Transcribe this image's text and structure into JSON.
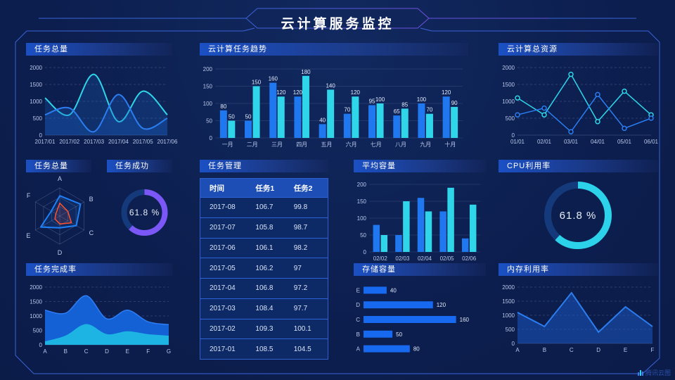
{
  "header": {
    "title": "云计算服务监控"
  },
  "watermark": {
    "label": "腾讯云图"
  },
  "colors": {
    "background": "#0c1e4e",
    "accent_blue": "#1f78f0",
    "accent_cyan": "#2fd5e8",
    "accent_purple": "#7b57f7",
    "accent_orange": "#ff5230",
    "frame_line": "#3b63d8",
    "panel_title_bar": "#1b50c4",
    "table_header": "#1d4eb5",
    "donut_track": "#143a7c"
  },
  "panels": {
    "taskTotalLine": {
      "title": "任务总量"
    },
    "taskTrend": {
      "title": "云计算任务趋势"
    },
    "cloudResource": {
      "title": "云计算总资源"
    },
    "taskRadar": {
      "title": "任务总量"
    },
    "taskSuccess": {
      "title": "任务成功"
    },
    "taskManage": {
      "title": "任务管理"
    },
    "avgCapacity": {
      "title": "平均容量"
    },
    "cpuUsage": {
      "title": "CPU利用率"
    },
    "taskComplete": {
      "title": "任务完成率"
    },
    "storage": {
      "title": "存储容量"
    },
    "memoryUsage": {
      "title": "内存利用率"
    }
  },
  "chart_data": [
    {
      "id": "task-total-area",
      "type": "line",
      "title": "任务总量",
      "smooth": true,
      "grid_dashed": true,
      "x": [
        "2017/01",
        "2017/02",
        "2017/03",
        "2017/04",
        "2017/05",
        "2017/06"
      ],
      "ylim": [
        0,
        2000
      ],
      "yticks": [
        0,
        500,
        1000,
        1500,
        2000
      ],
      "pad": {
        "l": 28,
        "r": 8,
        "t": 12,
        "b": 16
      },
      "series": [
        {
          "name": "cyan-series",
          "color": "#2fd5e8",
          "width": 2,
          "fill": "#1a6fd0",
          "fillOpacity": 0.22,
          "values": [
            1100,
            600,
            1800,
            400,
            1300,
            600
          ]
        },
        {
          "name": "blue-series",
          "color": "#2b7df0",
          "width": 2,
          "fill": "#1a5fc8",
          "fillOpacity": 0.3,
          "values": [
            600,
            800,
            100,
            1200,
            200,
            500
          ]
        }
      ]
    },
    {
      "id": "task-trend-bar",
      "type": "bar",
      "title": "云计算任务趋势",
      "categories": [
        "一月",
        "二月",
        "三月",
        "四月",
        "五月",
        "六月",
        "七月",
        "八月",
        "九月",
        "十月"
      ],
      "ylim": [
        0,
        200
      ],
      "yticks": [
        0,
        50,
        100,
        150,
        200
      ],
      "value_labels": true,
      "pad": {
        "l": 24,
        "r": 8,
        "t": 14,
        "b": 16
      },
      "series": [
        {
          "name": "任务1",
          "color": "#1f78f0",
          "values": [
            80,
            50,
            160,
            120,
            40,
            70,
            95,
            65,
            100,
            120
          ]
        },
        {
          "name": "任务2",
          "color": "#2fd5e8",
          "values": [
            50,
            150,
            120,
            180,
            140,
            120,
            100,
            85,
            70,
            90
          ]
        }
      ]
    },
    {
      "id": "cloud-resource-line",
      "type": "line",
      "title": "云计算总资源",
      "smooth": false,
      "grid_dashed": true,
      "x": [
        "01/01",
        "02/01",
        "03/01",
        "04/01",
        "05/01",
        "06/01"
      ],
      "ylim": [
        0,
        2000
      ],
      "yticks": [
        0,
        500,
        1000,
        1500,
        2000
      ],
      "pad": {
        "l": 30,
        "r": 10,
        "t": 12,
        "b": 16
      },
      "series": [
        {
          "name": "cyan-series",
          "color": "#2fd5e8",
          "width": 1.5,
          "marker": true,
          "values": [
            1100,
            600,
            1800,
            400,
            1300,
            600
          ]
        },
        {
          "name": "blue-series",
          "color": "#2b7df0",
          "width": 1.5,
          "marker": true,
          "values": [
            600,
            800,
            100,
            1200,
            200,
            500
          ]
        }
      ]
    },
    {
      "id": "task-radar",
      "type": "radar",
      "title": "任务总量",
      "axes": [
        "A",
        "B",
        "C",
        "D",
        "E",
        "F"
      ],
      "max": 100,
      "levels": 3,
      "series": [
        {
          "name": "blue-polygon",
          "color": "#2080f8",
          "values": [
            72,
            85,
            68,
            42,
            78,
            35
          ]
        },
        {
          "name": "orange-polygon",
          "color": "#ff5230",
          "values": [
            46,
            33,
            48,
            28,
            20,
            16
          ]
        }
      ]
    },
    {
      "id": "task-success-donut",
      "type": "donut",
      "title": "任务成功",
      "value": 61.8,
      "label": "61.8 %",
      "color": "#7b57f7",
      "track": "#143a7c",
      "r": 29,
      "sw": 8,
      "fs": 12
    },
    {
      "id": "task-table",
      "type": "table",
      "title": "任务管理",
      "headers": [
        "时间",
        "任务1",
        "任务2"
      ],
      "rows": [
        [
          "2017-08",
          "106.7",
          "99.8"
        ],
        [
          "2017-07",
          "105.8",
          "98.7"
        ],
        [
          "2017-06",
          "106.1",
          "98.2"
        ],
        [
          "2017-05",
          "106.2",
          "97"
        ],
        [
          "2017-04",
          "106.8",
          "97.2"
        ],
        [
          "2017-03",
          "108.4",
          "97.7"
        ],
        [
          "2017-02",
          "109.3",
          "100.1"
        ],
        [
          "2017-01",
          "108.5",
          "104.5"
        ]
      ]
    },
    {
      "id": "avg-capacity-bar",
      "type": "bar",
      "title": "平均容量",
      "categories": [
        "02/02",
        "02/03",
        "02/04",
        "02/05",
        "02/06"
      ],
      "ylim": [
        0,
        200
      ],
      "yticks": [
        0,
        50,
        100,
        150,
        200
      ],
      "value_labels": false,
      "pad": {
        "l": 24,
        "r": 8,
        "t": 10,
        "b": 16
      },
      "series": [
        {
          "name": "blue-series",
          "color": "#1f78f0",
          "values": [
            80,
            50,
            160,
            120,
            40
          ]
        },
        {
          "name": "cyan-series",
          "color": "#2fd5e8",
          "values": [
            50,
            150,
            120,
            190,
            140
          ]
        }
      ]
    },
    {
      "id": "cpu-donut",
      "type": "donut",
      "title": "CPU利用率",
      "value": 61.8,
      "label": "61.8 %",
      "color": "#2bd2ea",
      "track": "#143a7c",
      "r": 43,
      "sw": 10,
      "fs": 15
    },
    {
      "id": "task-complete-area",
      "type": "line",
      "title": "任务完成率",
      "smooth": true,
      "grid_dashed": true,
      "x": [
        "A",
        "B",
        "C",
        "D",
        "E",
        "F",
        "G"
      ],
      "ylim": [
        0,
        2000
      ],
      "yticks": [
        0,
        500,
        1000,
        1500,
        2000
      ],
      "pad": {
        "l": 28,
        "r": 6,
        "t": 12,
        "b": 16
      },
      "series": [
        {
          "name": "blue-area",
          "color": "#2f7df5",
          "width": 1.5,
          "fill": "#1565dc",
          "fillOpacity": 0.95,
          "values": [
            1200,
            1100,
            1700,
            900,
            1200,
            800,
            700
          ]
        },
        {
          "name": "cyan-area",
          "color": "#1db4e4",
          "width": 1.5,
          "fill": "#1db4e4",
          "fillOpacity": 1,
          "values": [
            100,
            300,
            700,
            350,
            450,
            350,
            300
          ]
        }
      ]
    },
    {
      "id": "storage-hbar",
      "type": "hbar",
      "title": "存储容量",
      "categories": [
        "E",
        "D",
        "C",
        "B",
        "A"
      ],
      "values": [
        40,
        120,
        160,
        50,
        80
      ],
      "xlim": [
        0,
        175
      ],
      "color": "#1769ef"
    },
    {
      "id": "memory-line",
      "type": "line",
      "title": "内存利用率",
      "smooth": false,
      "grid_dashed": true,
      "x": [
        "A",
        "B",
        "C",
        "D",
        "E",
        "F"
      ],
      "ylim": [
        0,
        2000
      ],
      "yticks": [
        0,
        500,
        1000,
        1500,
        2000
      ],
      "pad": {
        "l": 30,
        "r": 8,
        "t": 12,
        "b": 16
      },
      "series": [
        {
          "name": "blue-series",
          "color": "#2b7df0",
          "width": 2,
          "fill": "#1b5ccc",
          "fillOpacity": 0.5,
          "values": [
            1100,
            600,
            1800,
            400,
            1300,
            600
          ]
        }
      ]
    }
  ]
}
